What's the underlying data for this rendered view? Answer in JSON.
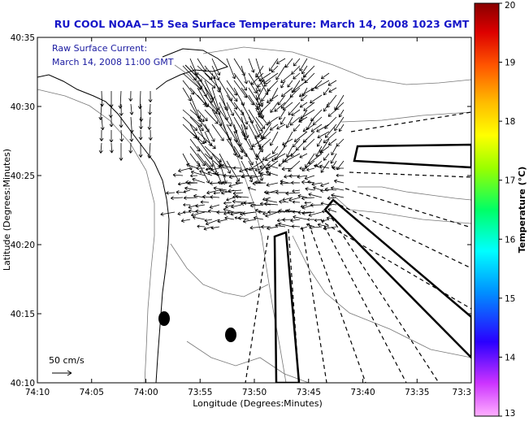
{
  "chart_data": {
    "type": "map",
    "title": "RU COOL  NOAA−15  Sea Surface Temperature:  March 14, 2008 1023 GMT",
    "subtitle_lines": [
      "Raw Surface Current:",
      "March 14, 2008 11:00 GMT"
    ],
    "xlabel": "Longitude (Degrees:Minutes)",
    "ylabel": "Latitude (Degrees:Minutes)",
    "x_ticks": [
      "74:10",
      "74:05",
      "74:00",
      "73:55",
      "73:50",
      "73:45",
      "73:40",
      "73:35",
      "73:3"
    ],
    "y_ticks": [
      "40:35",
      "40:30",
      "40:25",
      "40:20",
      "40:15",
      "40:10"
    ],
    "xlim_min": [
      -10,
      30
    ],
    "ylim_min": [
      35,
      10
    ],
    "scale_label": "50 cm/s",
    "colorbar": {
      "label": "Temperature (°C)",
      "ticks": [
        "20",
        "19",
        "18",
        "17",
        "16",
        "15",
        "14",
        "13"
      ],
      "range": [
        13,
        20
      ],
      "colors": [
        "#ff99ff",
        "#cc33ff",
        "#3300ff",
        "#0099ff",
        "#00ffff",
        "#00ff66",
        "#99ff00",
        "#ffff00",
        "#ffcc00",
        "#ff8800",
        "#ff2200",
        "#cc0000",
        "#880000"
      ]
    }
  }
}
